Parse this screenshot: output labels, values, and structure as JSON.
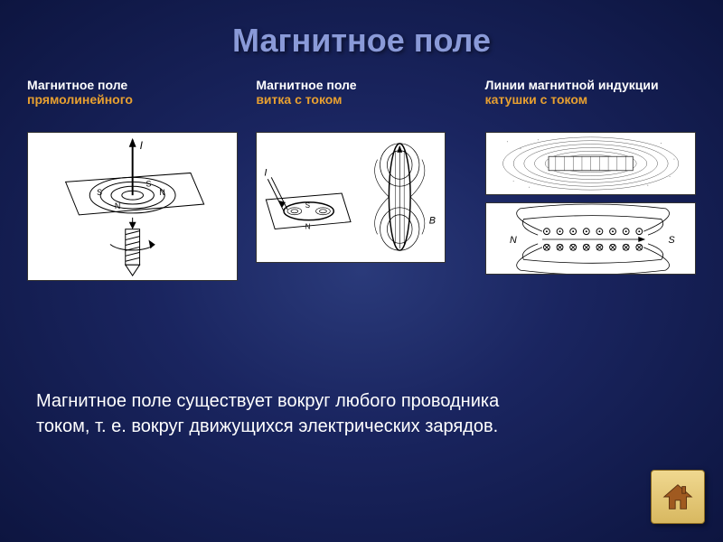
{
  "title": "Магнитное поле",
  "columns": [
    {
      "label_plain": "Магнитное поле",
      "label_hl": "прямолинейного"
    },
    {
      "label_plain": "Магнитное поле",
      "label_hl": "витка с током"
    },
    {
      "label_plain": "Линии магнитной индукции ",
      "label_hl": "катушки с током"
    }
  ],
  "bottom_text": "Магнитное поле существует вокруг любого проводника\nтоком, т. е. вокруг движущихся электрических зарядов.",
  "colors": {
    "title": "#8a9ad8",
    "highlight": "#e8a030",
    "bg_inner": "#2a3a7a",
    "bg_outer": "#0d1540",
    "diagram_bg": "#ffffff",
    "diagram_stroke": "#000000"
  },
  "diagrams": {
    "d1": {
      "type": "straight-wire-field",
      "labels": [
        "I",
        "N",
        "S"
      ]
    },
    "d2": {
      "type": "loop-field",
      "labels": [
        "I",
        "N",
        "S",
        "B"
      ]
    },
    "d3a": {
      "type": "solenoid-iron-filings"
    },
    "d3b": {
      "type": "solenoid-field-lines",
      "labels": [
        "N",
        "S"
      ]
    }
  }
}
